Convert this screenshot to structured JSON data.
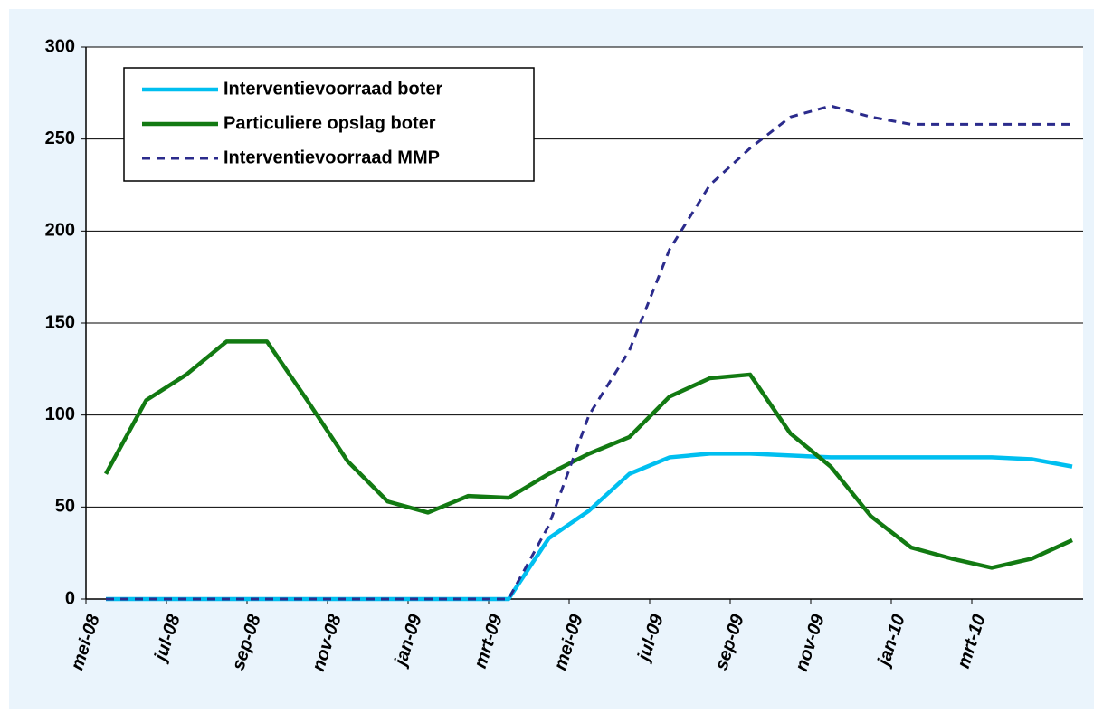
{
  "chart_data": {
    "type": "line",
    "categories": [
      "mei-08",
      null,
      "jul-08",
      null,
      "sep-08",
      null,
      "nov-08",
      null,
      "jan-09",
      null,
      "mrt-09",
      null,
      "mei-09",
      null,
      "jul-09",
      null,
      "sep-09",
      null,
      "nov-09",
      null,
      "jan-10",
      null,
      "mrt-10",
      null,
      null
    ],
    "series": [
      {
        "name": "Interventievoorraad boter",
        "color": "#00bff0",
        "dash": false,
        "values": [
          0,
          0,
          0,
          0,
          0,
          0,
          0,
          0,
          0,
          0,
          0,
          33,
          48,
          68,
          77,
          79,
          79,
          78,
          77,
          77,
          77,
          77,
          77,
          76,
          72
        ]
      },
      {
        "name": "Particuliere opslag boter",
        "color": "#127a12",
        "dash": false,
        "values": [
          68,
          108,
          122,
          140,
          140,
          108,
          75,
          53,
          47,
          56,
          55,
          68,
          79,
          88,
          110,
          120,
          122,
          90,
          72,
          45,
          28,
          22,
          17,
          22,
          32
        ]
      },
      {
        "name": "Interventievoorraad MMP",
        "color": "#2b2b8c",
        "dash": true,
        "values": [
          0,
          0,
          0,
          0,
          0,
          0,
          0,
          0,
          0,
          0,
          0,
          40,
          100,
          135,
          190,
          225,
          245,
          262,
          268,
          262,
          258,
          258,
          258,
          258,
          258
        ]
      }
    ],
    "ylim": [
      0,
      300
    ],
    "yticks": [
      0,
      50,
      100,
      150,
      200,
      250,
      300
    ],
    "grid": true,
    "legend": "upper left"
  }
}
